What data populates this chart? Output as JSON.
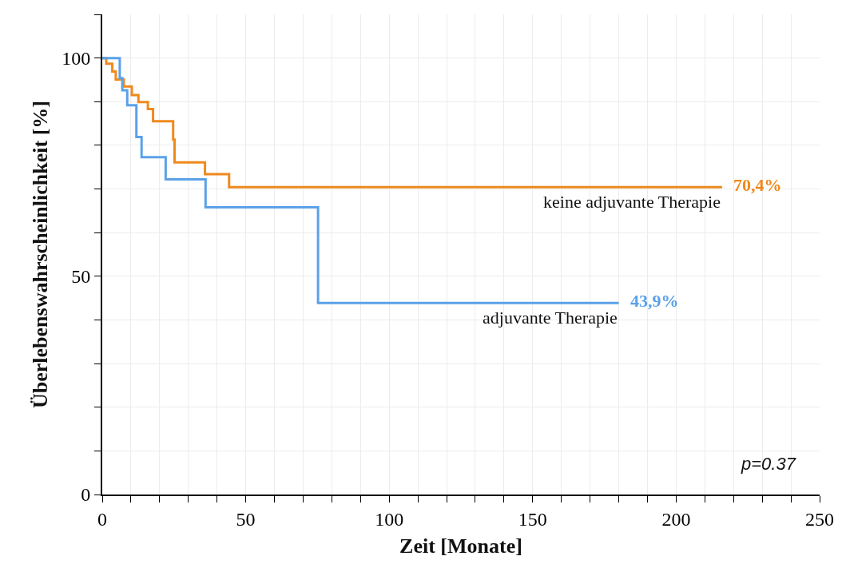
{
  "chart_data": {
    "type": "step",
    "xlabel": "Zeit [Monate]",
    "ylabel": "Überlebenswahrscheinlichkeit [%]",
    "xlim": [
      0,
      250
    ],
    "ylim": [
      0,
      110
    ],
    "xticks": [
      0,
      {
        "value": 10,
        "label": null
      },
      {
        "value": 20,
        "label": null
      },
      {
        "value": 30,
        "label": null
      },
      {
        "value": 40,
        "label": null
      },
      50,
      {
        "value": 60,
        "label": null
      },
      {
        "value": 70,
        "label": null
      },
      {
        "value": 80,
        "label": null
      },
      {
        "value": 90,
        "label": null
      },
      100,
      {
        "value": 110,
        "label": null
      },
      {
        "value": 120,
        "label": null
      },
      {
        "value": 130,
        "label": null
      },
      {
        "value": 140,
        "label": null
      },
      150,
      {
        "value": 160,
        "label": null
      },
      {
        "value": 170,
        "label": null
      },
      {
        "value": 180,
        "label": null
      },
      {
        "value": 190,
        "label": null
      },
      200,
      {
        "value": 210,
        "label": null
      },
      {
        "value": 220,
        "label": null
      },
      {
        "value": 230,
        "label": null
      },
      {
        "value": 240,
        "label": null
      },
      250
    ],
    "yticks": [
      0,
      {
        "value": 10,
        "label": null
      },
      {
        "value": 20,
        "label": null
      },
      {
        "value": 30,
        "label": null
      },
      {
        "value": 40,
        "label": null
      },
      50,
      {
        "value": 60,
        "label": null
      },
      {
        "value": 70,
        "label": null
      },
      {
        "value": 80,
        "label": null
      },
      {
        "value": 90,
        "label": null
      },
      100,
      {
        "value": 110,
        "label": null
      }
    ],
    "grid": true,
    "legend": false,
    "line_style": "solid",
    "marker": "none",
    "series": [
      {
        "name": "keine adjuvante Therapie",
        "color": "#f0891c",
        "x": [
          0,
          1.4,
          3.5,
          4.7,
          7.5,
          10.3,
          12.6,
          15.9,
          17.7,
          24.7,
          25.2,
          35.8,
          44.2,
          216
        ],
        "values": [
          100,
          98.7,
          96.9,
          95.1,
          93.5,
          91.5,
          89.9,
          88.3,
          85.5,
          81.3,
          76.1,
          73.4,
          70.4,
          70.4
        ]
      },
      {
        "name": "adjuvante Therapie",
        "color": "#5ba1e9",
        "x": [
          0,
          6.1,
          7,
          8.7,
          11.9,
          13.7,
          22.1,
          36,
          75.2,
          180
        ],
        "values": [
          100,
          95.4,
          92.6,
          89.2,
          81.9,
          77.3,
          72.2,
          65.8,
          43.9,
          43.9
        ]
      }
    ],
    "annotations": [
      {
        "text": "70,4%",
        "x": 216,
        "y": 70.4
      },
      {
        "text": "43,9%",
        "x": 180,
        "y": 43.9
      },
      "p=0.37"
    ]
  }
}
